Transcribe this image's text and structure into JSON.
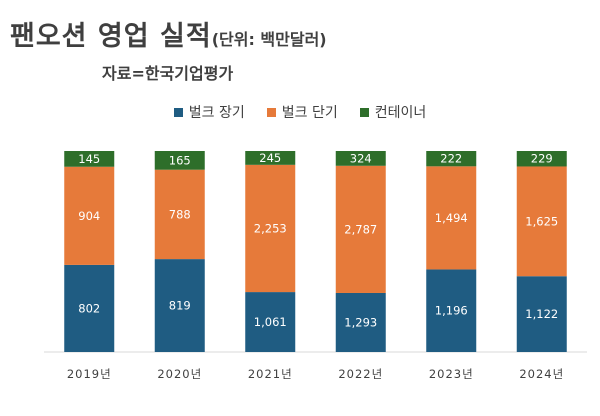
{
  "header": {
    "title": "팬오션 영업 실적",
    "unit": "(단위: 백만달러)",
    "source": "자료=한국기업평가"
  },
  "legend": [
    {
      "label": "벌크 장기",
      "color": "#1f5c82"
    },
    {
      "label": "벌크 단기",
      "color": "#e67a3a"
    },
    {
      "label": "컨테이너",
      "color": "#2e6e2a"
    }
  ],
  "chart_data": {
    "type": "bar",
    "stacked": true,
    "categories": [
      "2019년",
      "2020년",
      "2021년",
      "2022년",
      "2023년",
      "2024년"
    ],
    "series": [
      {
        "name": "벌크 장기",
        "values": [
          802,
          819,
          1061,
          1293,
          1196,
          1122
        ],
        "labels": [
          "802",
          "819",
          "1,061",
          "1,293",
          "1,196",
          "1,122"
        ],
        "color": "#1f5c82"
      },
      {
        "name": "벌크 단기",
        "values": [
          904,
          788,
          2253,
          2787,
          1494,
          1625
        ],
        "labels": [
          "904",
          "788",
          "2,253",
          "2,787",
          "1,494",
          "1,625"
        ],
        "color": "#e67a3a"
      },
      {
        "name": "컨테이너",
        "values": [
          145,
          165,
          245,
          324,
          222,
          229
        ],
        "labels": [
          "145",
          "165",
          "245",
          "324",
          "222",
          "229"
        ],
        "color": "#2e6e2a"
      }
    ],
    "normalized": true,
    "legend_position": "top"
  }
}
